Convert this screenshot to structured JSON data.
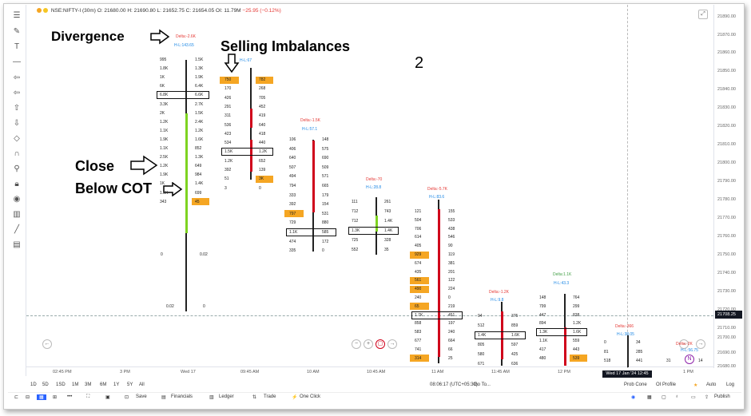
{
  "header": {
    "symbol": "NSE:NIFTY-I (30m)",
    "ohlc": "O: 21680.00  H: 21690.80  L: 21652.75  C: 21654.05",
    "oi": "OI: 11.79M",
    "change": "−25.95 (−0.12%)"
  },
  "annotations": {
    "divergence": "Divergence",
    "selling": "Selling Imbalances",
    "number": "2",
    "close1": "Close",
    "close2": "Below COT"
  },
  "price_axis": [
    "21890.00",
    "21870.00",
    "21860.00",
    "21850.00",
    "21840.00",
    "21830.00",
    "21820.00",
    "21810.00",
    "21800.00",
    "21790.00",
    "21780.00",
    "21770.00",
    "21760.00",
    "21750.00",
    "21740.00",
    "21730.00",
    "21720.00",
    "21710.00",
    "21700.00",
    "21690.00",
    "21680.00"
  ],
  "current_price": "21708.25",
  "time_axis": [
    "02:45 PM",
    "3 PM",
    "Wed 17",
    "09:45 AM",
    "10 AM",
    "10:45 AM",
    "11 AM",
    "11:45 AM",
    "12 PM",
    "1 PM"
  ],
  "crosshair_time": "Wed 17 Jan '24 12:45",
  "bottom1": {
    "ranges": [
      "1D",
      "5D",
      "1SD",
      "1M",
      "3M",
      "6M",
      "1Y",
      "5Y",
      "All"
    ],
    "clock": "08:06:17 (UTC+05:30)",
    "goto": "Go To...",
    "probcone": "Prob Cone",
    "oiprofile": "OI Profile",
    "auto": "Auto",
    "log": "Log"
  },
  "bottom2": {
    "save": "Save",
    "financials": "Financials",
    "ledger": "Ledger",
    "trade": "Trade",
    "oneclick": "One Click",
    "publish": "Publish"
  },
  "candles": {
    "c1": {
      "delta": "Delta:-2.6K",
      "hl": "H-L:143.65",
      "rows": [
        [
          "995",
          "1.5K"
        ],
        [
          "1.8K",
          "1.3K"
        ],
        [
          "1K",
          "1.9K"
        ],
        [
          "6K",
          "6.4K"
        ],
        [
          "6.8K",
          "6.6K"
        ],
        [
          "3.3K",
          "2.7K"
        ],
        [
          "2K",
          "1.5K"
        ],
        [
          "1.2K",
          "2.4K"
        ],
        [
          "1.1K",
          "1.2K"
        ],
        [
          "1.9K",
          "1.6K"
        ],
        [
          "1.1K",
          "852"
        ],
        [
          "2.5K",
          "1.3K"
        ],
        [
          "1.2K",
          "649"
        ],
        [
          "1.9K",
          "984"
        ],
        [
          "1K",
          "1.4K"
        ],
        [
          "1.5K",
          "699"
        ],
        [
          "343",
          "45"
        ]
      ],
      "low": [
        "0",
        "0.02"
      ],
      "bottom": [
        "0.02",
        "0"
      ]
    },
    "c2": {
      "delta": "",
      "hl": "H-L:67",
      "rows": [
        [
          "750",
          "782"
        ],
        [
          "170",
          "268"
        ],
        [
          "426",
          "705"
        ],
        [
          "291",
          "452"
        ],
        [
          "311",
          "419"
        ],
        [
          "536",
          "640"
        ],
        [
          "423",
          "418"
        ],
        [
          "534",
          "440"
        ],
        [
          "1.5K",
          "1.2K"
        ],
        [
          "1.2K",
          "652"
        ],
        [
          "392",
          "139"
        ],
        [
          "51",
          "3K"
        ],
        [
          "3",
          "0"
        ]
      ]
    },
    "c3": {
      "delta": "Delta:-1.5K",
      "hl": "H-L:57.1",
      "rows": [
        [
          "106",
          "148"
        ],
        [
          "406",
          "575"
        ],
        [
          "640",
          "690"
        ],
        [
          "507",
          "509"
        ],
        [
          "494",
          "571"
        ],
        [
          "794",
          "665"
        ],
        [
          "333",
          "179"
        ],
        [
          "392",
          "154"
        ],
        [
          "797",
          "531"
        ],
        [
          "729",
          "880"
        ],
        [
          "1.1K",
          "585"
        ],
        [
          "474",
          "172"
        ],
        [
          "335",
          "0"
        ]
      ]
    },
    "c4": {
      "delta": "Delta:-70",
      "hl": "H-L:28.8",
      "rows": [
        [
          "111",
          "261"
        ],
        [
          "712",
          "743"
        ],
        [
          "712",
          "1.4K"
        ],
        [
          "1.3K",
          "1.4K"
        ],
        [
          "725",
          "328"
        ],
        [
          "552",
          "35"
        ]
      ]
    },
    "c5": {
      "delta": "Delta:-5.7K",
      "hl": "H-L:83.6",
      "rows": [
        [
          "121",
          "155"
        ],
        [
          "504",
          "533"
        ],
        [
          "706",
          "438"
        ],
        [
          "614",
          "546"
        ],
        [
          "405",
          "90"
        ],
        [
          "929",
          "119"
        ],
        [
          "674",
          "381"
        ],
        [
          "435",
          "201"
        ],
        [
          "561",
          "122"
        ],
        [
          "490",
          "224"
        ],
        [
          "240",
          "0"
        ],
        [
          "65",
          "219"
        ],
        [
          "1.7K",
          "451"
        ],
        [
          "858",
          "197"
        ],
        [
          "583",
          "240"
        ],
        [
          "677",
          "664"
        ],
        [
          "741",
          "66"
        ],
        [
          "314",
          "25"
        ]
      ]
    },
    "c6": {
      "delta": "Delta:-1.2K",
      "hl": "H-L:9.8",
      "rows": [
        [
          "94",
          "375"
        ],
        [
          "512",
          "859"
        ],
        [
          "1.4K",
          "1.6K"
        ],
        [
          "805",
          "597"
        ],
        [
          "580",
          "425"
        ],
        [
          "671",
          "636"
        ]
      ]
    },
    "c7": {
      "delta": "Delta:1.1K",
      "hl": "H-L:43.3",
      "rows": [
        [
          "148",
          "764"
        ],
        [
          "799",
          "299"
        ],
        [
          "447",
          "838"
        ],
        [
          "894",
          "1.2K"
        ],
        [
          "1.3K",
          "1.6K"
        ],
        [
          "1.1K",
          "559"
        ],
        [
          "417",
          "443"
        ],
        [
          "480",
          "539"
        ]
      ]
    },
    "c8": {
      "delta": "Delta:-366",
      "hl": "H-L:38.05",
      "rows": [
        [
          "0",
          "34"
        ],
        [
          "81",
          "285"
        ],
        [
          "518",
          "441"
        ]
      ]
    },
    "c9": {
      "delta": "Delta:-2K",
      "hl": "H-L:56.75",
      "rows": [
        [
          "31",
          "14"
        ]
      ]
    }
  }
}
